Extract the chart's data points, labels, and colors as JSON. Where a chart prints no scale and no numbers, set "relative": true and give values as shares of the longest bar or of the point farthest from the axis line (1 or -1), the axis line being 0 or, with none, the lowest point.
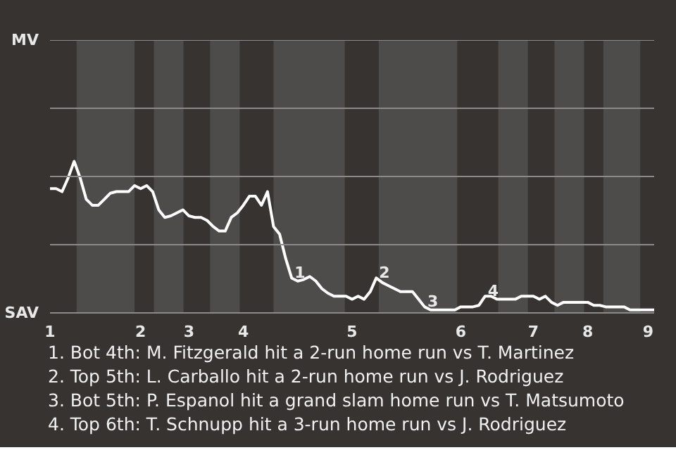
{
  "chart_data": {
    "type": "line",
    "relative": true,
    "marker": "none",
    "line_style": "solid",
    "categories": [
      "1",
      null,
      null,
      null,
      null,
      null,
      null,
      null,
      null,
      null,
      null,
      null,
      null,
      null,
      null,
      "2",
      null,
      null,
      null,
      null,
      null,
      null,
      null,
      "3",
      null,
      null,
      null,
      null,
      null,
      null,
      null,
      null,
      "4",
      null,
      null,
      null,
      null,
      null,
      null,
      null,
      null,
      null,
      null,
      null,
      null,
      null,
      null,
      null,
      null,
      null,
      "5",
      null,
      null,
      null,
      null,
      null,
      null,
      null,
      null,
      null,
      null,
      null,
      null,
      null,
      null,
      null,
      null,
      null,
      "6",
      null,
      null,
      null,
      null,
      null,
      null,
      null,
      null,
      null,
      null,
      null,
      "7",
      null,
      null,
      null,
      null,
      null,
      null,
      null,
      null,
      "8",
      null,
      null,
      null,
      null,
      null,
      null,
      null,
      null,
      null,
      "9",
      null
    ],
    "series": [
      {
        "color": "#ffffff",
        "values": [
          0.82,
          0.82,
          0.8,
          0.89,
          1.0,
          0.89,
          0.75,
          0.71,
          0.71,
          0.75,
          0.79,
          0.8,
          0.8,
          0.8,
          0.84,
          0.82,
          0.84,
          0.8,
          0.68,
          0.63,
          0.64,
          0.66,
          0.68,
          0.64,
          0.63,
          0.63,
          0.61,
          0.57,
          0.54,
          0.54,
          0.63,
          0.66,
          0.71,
          0.77,
          0.77,
          0.71,
          0.8,
          0.57,
          0.52,
          0.36,
          0.23,
          0.21,
          0.22,
          0.24,
          0.21,
          0.16,
          0.13,
          0.11,
          0.11,
          0.11,
          0.09,
          0.11,
          0.09,
          0.14,
          0.23,
          0.2,
          0.18,
          0.16,
          0.14,
          0.14,
          0.14,
          0.09,
          0.04,
          0.02,
          0.02,
          0.02,
          0.02,
          0.02,
          0.04,
          0.04,
          0.04,
          0.05,
          0.11,
          0.11,
          0.09,
          0.09,
          0.09,
          0.09,
          0.11,
          0.11,
          0.11,
          0.09,
          0.11,
          0.07,
          0.05,
          0.07,
          0.07,
          0.07,
          0.07,
          0.07,
          0.05,
          0.05,
          0.04,
          0.04,
          0.04,
          0.04,
          0.02,
          0.02,
          0.02,
          0.02,
          0.02
        ]
      }
    ],
    "ref_lines": [
      {
        "axis": "y",
        "value": 0.45,
        "color": "#8a8a8a"
      },
      {
        "axis": "y",
        "value": 0.9,
        "color": "#8a8a8a"
      },
      {
        "axis": "y",
        "value": 1.35,
        "color": "#8a8a8a"
      },
      {
        "axis": "y",
        "value": 1.8,
        "color": "#8a8a8a"
      }
    ],
    "annotations": [
      "MV",
      "SAV",
      {
        "text": "1",
        "y": 0.23
      },
      {
        "text": "2",
        "y": 0.23
      },
      {
        "text": "3",
        "y": 0.04
      },
      {
        "text": "4",
        "y": 0.11
      },
      "1. Bot 4th: M. Fitzgerald hit a 2-run home run vs T. Martinez",
      "2. Top 5th: L. Carballo hit a 2-run home run vs J. Rodriguez",
      "3. Bot 5th: P. Espanol hit a grand slam home run vs T. Matsumoto",
      "4. Top 6th: T. Schnupp hit a 3-run home run vs J. Rodriguez"
    ]
  }
}
